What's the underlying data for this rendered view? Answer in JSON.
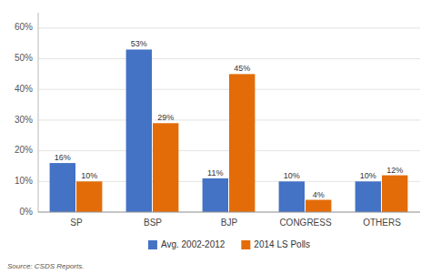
{
  "chart_data": {
    "type": "bar",
    "categories": [
      "SP",
      "BSP",
      "BJP",
      "CONGRESS",
      "OTHERS"
    ],
    "series": [
      {
        "name": "Avg. 2002-2012",
        "color": "#4472C4",
        "values": [
          16,
          53,
          11,
          10,
          10
        ],
        "value_labels": [
          "16%",
          "53%",
          "11%",
          "10%",
          "10%"
        ]
      },
      {
        "name": "2014 LS Polls",
        "color": "#E36C09",
        "values": [
          10,
          29,
          45,
          4,
          12
        ],
        "value_labels": [
          "10%",
          "29%",
          "45%",
          "4%",
          "12%"
        ]
      }
    ],
    "ylim": [
      0,
      65
    ],
    "yticks": [
      {
        "value": 0,
        "label": "0%"
      },
      {
        "value": 10,
        "label": "10%"
      },
      {
        "value": 20,
        "label": "20%"
      },
      {
        "value": 30,
        "label": "30%"
      },
      {
        "value": 40,
        "label": "40%"
      },
      {
        "value": 50,
        "label": "50%"
      },
      {
        "value": 60,
        "label": "60%"
      }
    ],
    "grid": true,
    "legend": "bottom",
    "data_labels": true,
    "annotation": "Source: CSDS Reports."
  }
}
